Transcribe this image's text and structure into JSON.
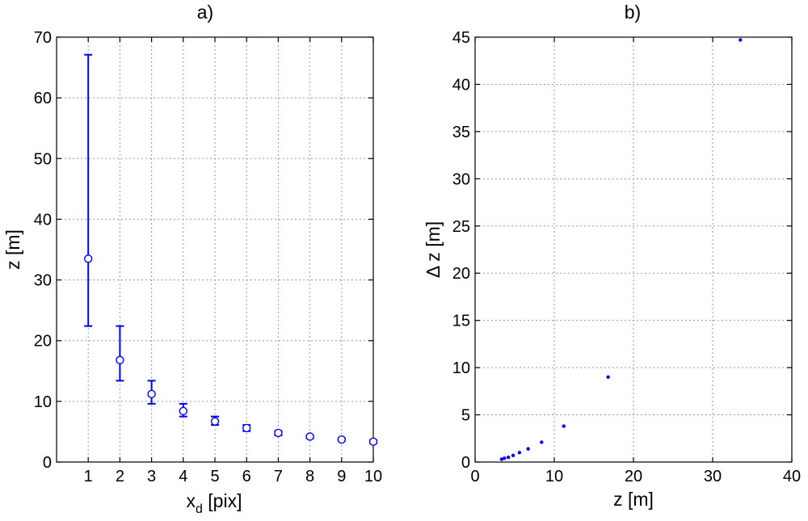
{
  "chart_data": [
    {
      "type": "scatter",
      "panel": "a)",
      "title": "a)",
      "xlabel": "x",
      "xlabel_subscript": "d",
      "xlabel_unit": " [pix]",
      "ylabel": "z [m]",
      "xlim": [
        0,
        10
      ],
      "ylim": [
        0,
        70
      ],
      "xticks": [
        1,
        2,
        3,
        4,
        5,
        6,
        7,
        8,
        9,
        10
      ],
      "yticks": [
        0,
        10,
        20,
        30,
        40,
        50,
        60,
        70
      ],
      "grid": true,
      "marker": "circle",
      "errorbars": true,
      "color": "#0000ff",
      "series": [
        {
          "x": [
            1,
            2,
            3,
            4,
            5,
            6,
            7,
            8,
            9,
            10
          ],
          "y": [
            33.5,
            16.8,
            11.2,
            8.4,
            6.7,
            5.6,
            4.8,
            4.2,
            3.7,
            3.35
          ],
          "y_lower": [
            22.4,
            13.4,
            9.6,
            7.5,
            6.1,
            5.1,
            4.4,
            3.9,
            3.5,
            3.1
          ],
          "y_upper": [
            67.1,
            22.4,
            13.4,
            9.6,
            7.5,
            6.1,
            5.1,
            4.4,
            3.9,
            3.6
          ]
        }
      ]
    },
    {
      "type": "scatter",
      "panel": "b)",
      "title": "b)",
      "xlabel": "z [m]",
      "ylabel": "Δ z [m]",
      "xlim": [
        0,
        40
      ],
      "ylim": [
        0,
        45
      ],
      "xticks": [
        0,
        10,
        20,
        30,
        40
      ],
      "yticks": [
        0,
        5,
        10,
        15,
        20,
        25,
        30,
        35,
        40,
        45
      ],
      "grid": true,
      "marker": "dot",
      "color": "#0000ff",
      "series": [
        {
          "x": [
            33.5,
            16.8,
            11.2,
            8.4,
            6.7,
            5.6,
            4.8,
            4.2,
            3.7,
            3.35
          ],
          "y": [
            44.7,
            9.0,
            3.8,
            2.1,
            1.4,
            1.0,
            0.7,
            0.5,
            0.4,
            0.3
          ]
        }
      ]
    }
  ]
}
